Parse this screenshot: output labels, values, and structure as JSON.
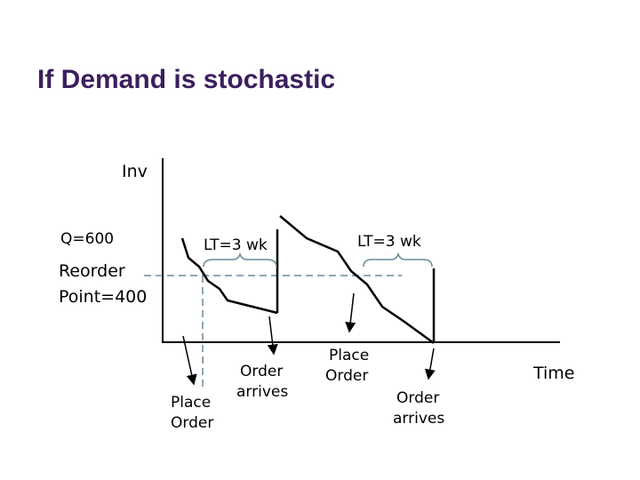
{
  "title": "If Demand is stochastic",
  "y_axis_label": "Inv",
  "x_axis_label": "Time",
  "q_label": "Q=600",
  "reorder_label": [
    "Reorder",
    "Point=400"
  ],
  "lead_time_labels": [
    "LT=3 wk",
    "LT=3 wk"
  ],
  "place_order_labels": [
    [
      "Place",
      "Order"
    ],
    [
      "Place",
      "Order"
    ]
  ],
  "order_arrives_labels": [
    [
      "Order",
      "arrives"
    ],
    [
      "Order",
      "arrives"
    ]
  ]
}
